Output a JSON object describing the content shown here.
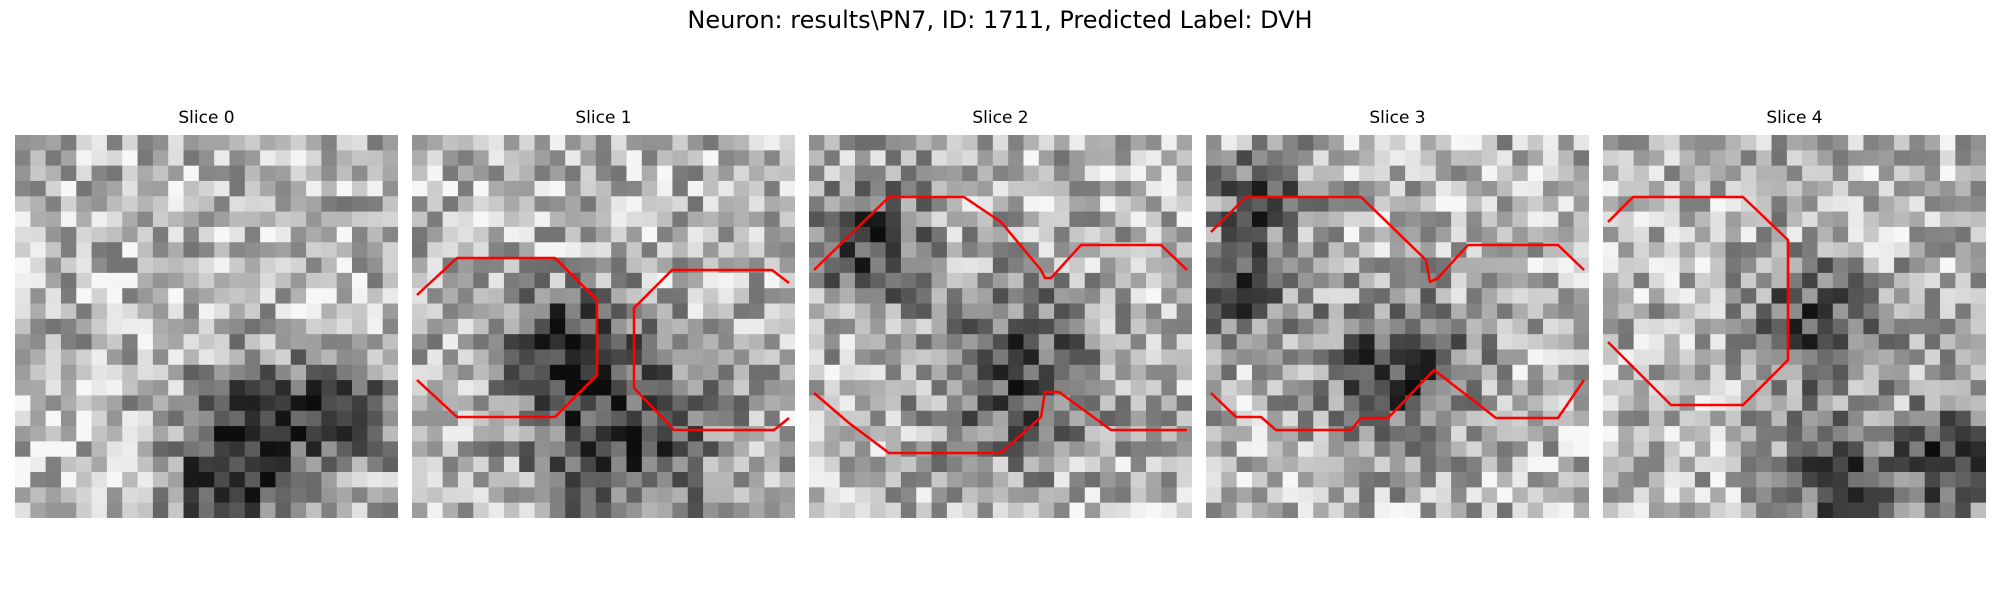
{
  "figure": {
    "title": "Neuron: results\\PN7, ID: 1711, Predicted Label: DVH",
    "contour_color": "#ff0000"
  },
  "slices": [
    {
      "title": "Slice 0",
      "seed": 11,
      "dark_blobs": [
        [
          0.62,
          0.78,
          0.12
        ],
        [
          0.88,
          0.72,
          0.1
        ],
        [
          0.55,
          0.95,
          0.1
        ]
      ]
    },
    {
      "title": "Slice 1",
      "seed": 23,
      "dark_blobs": [
        [
          0.55,
          0.78,
          0.18
        ],
        [
          0.4,
          0.55,
          0.1
        ]
      ]
    },
    {
      "title": "Slice 2",
      "seed": 37,
      "dark_blobs": [
        [
          0.55,
          0.62,
          0.15
        ],
        [
          0.15,
          0.28,
          0.12
        ]
      ]
    },
    {
      "title": "Slice 3",
      "seed": 41,
      "dark_blobs": [
        [
          0.5,
          0.62,
          0.14
        ],
        [
          0.08,
          0.4,
          0.1
        ],
        [
          0.15,
          0.15,
          0.08
        ]
      ]
    },
    {
      "title": "Slice 4",
      "seed": 53,
      "dark_blobs": [
        [
          0.55,
          0.5,
          0.12
        ],
        [
          0.9,
          0.85,
          0.1
        ],
        [
          0.62,
          0.9,
          0.1
        ]
      ]
    }
  ]
}
